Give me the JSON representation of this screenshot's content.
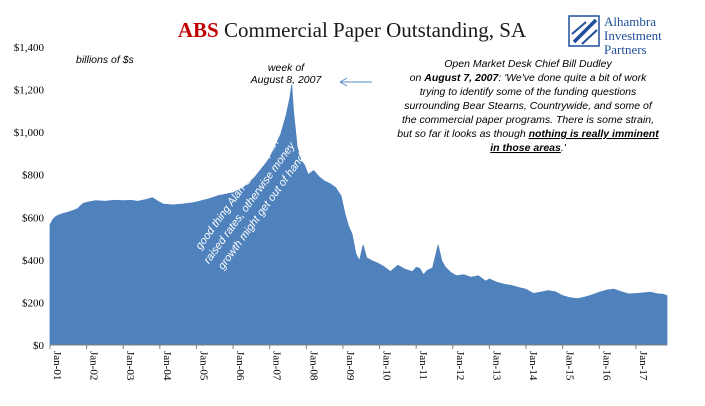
{
  "chart_data": {
    "type": "area",
    "title_prefix": "ABS",
    "title_rest": " Commercial Paper Outstanding, SA",
    "units_label": "billions of $s",
    "ylim": [
      0,
      1400
    ],
    "y_ticks": [
      "$0",
      "$200",
      "$400",
      "$600",
      "$800",
      "$1,000",
      "$1,200",
      "$1,400"
    ],
    "y_tick_values": [
      0,
      200,
      400,
      600,
      800,
      1000,
      1200,
      1400
    ],
    "x_ticks": [
      "Jan-01",
      "Jan-02",
      "Jan-03",
      "Jan-04",
      "Jan-05",
      "Jan-06",
      "Jan-07",
      "Jan-08",
      "Jan-09",
      "Jan-10",
      "Jan-11",
      "Jan-12",
      "Jan-13",
      "Jan-14",
      "Jan-15",
      "Jan-16",
      "Jan-17"
    ],
    "x_start": 2001.0,
    "x_end": 2017.85,
    "grid": false,
    "series": [
      {
        "color": "#4f81bd",
        "points": [
          [
            2001.0,
            565
          ],
          [
            2001.08,
            590
          ],
          [
            2001.17,
            605
          ],
          [
            2001.3,
            615
          ],
          [
            2001.45,
            622
          ],
          [
            2001.6,
            630
          ],
          [
            2001.75,
            640
          ],
          [
            2001.9,
            665
          ],
          [
            2002.0,
            670
          ],
          [
            2002.25,
            678
          ],
          [
            2002.5,
            675
          ],
          [
            2002.75,
            680
          ],
          [
            2003.0,
            678
          ],
          [
            2003.2,
            680
          ],
          [
            2003.4,
            675
          ],
          [
            2003.6,
            682
          ],
          [
            2003.8,
            692
          ],
          [
            2003.95,
            675
          ],
          [
            2004.1,
            662
          ],
          [
            2004.35,
            658
          ],
          [
            2004.6,
            662
          ],
          [
            2004.9,
            668
          ],
          [
            2005.0,
            672
          ],
          [
            2005.3,
            685
          ],
          [
            2005.6,
            702
          ],
          [
            2005.9,
            712
          ],
          [
            2006.0,
            715
          ],
          [
            2006.3,
            742
          ],
          [
            2006.6,
            790
          ],
          [
            2006.9,
            855
          ],
          [
            2007.0,
            880
          ],
          [
            2007.15,
            935
          ],
          [
            2007.3,
            990
          ],
          [
            2007.45,
            1080
          ],
          [
            2007.55,
            1160
          ],
          [
            2007.6,
            1222
          ],
          [
            2007.65,
            1100
          ],
          [
            2007.75,
            930
          ],
          [
            2007.85,
            870
          ],
          [
            2007.95,
            845
          ],
          [
            2008.05,
            800
          ],
          [
            2008.2,
            820
          ],
          [
            2008.35,
            790
          ],
          [
            2008.5,
            770
          ],
          [
            2008.65,
            758
          ],
          [
            2008.8,
            740
          ],
          [
            2008.95,
            700
          ],
          [
            2009.05,
            620
          ],
          [
            2009.15,
            560
          ],
          [
            2009.25,
            520
          ],
          [
            2009.35,
            430
          ],
          [
            2009.45,
            395
          ],
          [
            2009.55,
            470
          ],
          [
            2009.65,
            410
          ],
          [
            2009.8,
            395
          ],
          [
            2009.95,
            385
          ],
          [
            2010.1,
            370
          ],
          [
            2010.3,
            345
          ],
          [
            2010.5,
            375
          ],
          [
            2010.7,
            355
          ],
          [
            2010.9,
            345
          ],
          [
            2011.0,
            365
          ],
          [
            2011.1,
            360
          ],
          [
            2011.2,
            330
          ],
          [
            2011.3,
            350
          ],
          [
            2011.45,
            362
          ],
          [
            2011.6,
            470
          ],
          [
            2011.7,
            395
          ],
          [
            2011.8,
            365
          ],
          [
            2011.95,
            340
          ],
          [
            2012.1,
            325
          ],
          [
            2012.3,
            330
          ],
          [
            2012.5,
            318
          ],
          [
            2012.7,
            325
          ],
          [
            2012.9,
            300
          ],
          [
            2013.0,
            310
          ],
          [
            2013.2,
            295
          ],
          [
            2013.4,
            285
          ],
          [
            2013.6,
            280
          ],
          [
            2013.8,
            270
          ],
          [
            2014.0,
            262
          ],
          [
            2014.2,
            242
          ],
          [
            2014.4,
            248
          ],
          [
            2014.6,
            255
          ],
          [
            2014.8,
            250
          ],
          [
            2015.0,
            232
          ],
          [
            2015.2,
            222
          ],
          [
            2015.4,
            218
          ],
          [
            2015.6,
            225
          ],
          [
            2015.8,
            235
          ],
          [
            2016.0,
            248
          ],
          [
            2016.2,
            258
          ],
          [
            2016.4,
            262
          ],
          [
            2016.6,
            250
          ],
          [
            2016.8,
            240
          ],
          [
            2017.0,
            242
          ],
          [
            2017.2,
            245
          ],
          [
            2017.4,
            248
          ],
          [
            2017.6,
            240
          ],
          [
            2017.75,
            238
          ],
          [
            2017.85,
            232
          ]
        ]
      }
    ],
    "annotations": {
      "week_line1": "week of",
      "week_line2": "August 8, 2007",
      "quote_line1": "Open Market Desk Chief Bill Dudley",
      "quote_line2_bold": "August 7, 2007",
      "quote_line2_pre": "on ",
      "quote_line2_post": ": 'We've done quite a bit of work",
      "quote_line3": "trying to identify some of the funding questions",
      "quote_line4": "surrounding Bear Stearns, Countrywide, and some of",
      "quote_line5": "the commercial paper programs. There is some strain,",
      "quote_line6_pre": "but so far it looks as though ",
      "quote_line6_bold": "nothing is really imminent",
      "quote_line7_bold": "in those areas",
      "quote_line7_post": ".'",
      "greenspan_line1": "good thing Alan Greenspan",
      "greenspan_line2": "raised rates, otherwise money",
      "greenspan_line3": "growth might get out of hand"
    },
    "colors": {
      "title_accent": "#c00000",
      "area_fill": "#4f81bd",
      "logo_blue": "#1f4e9a"
    }
  },
  "logo": {
    "line1": "Alhambra",
    "line2": "Investment",
    "line3": "Partners"
  }
}
